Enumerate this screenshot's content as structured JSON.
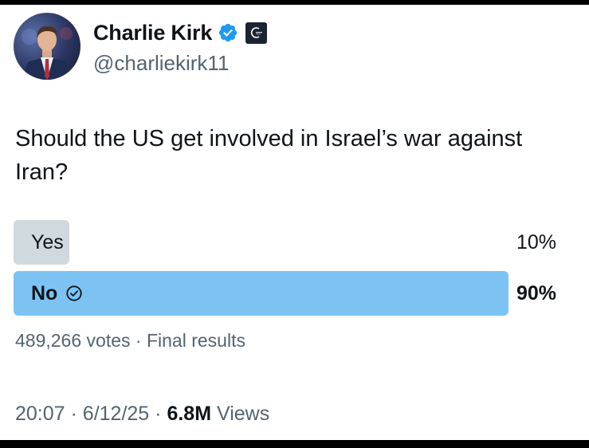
{
  "author": {
    "name": "Charlie Kirk",
    "handle": "@charliekirk11",
    "verified_icon": "verified-badge-icon",
    "affiliation_icon": "organization-badge-icon"
  },
  "post": {
    "text": "Should the US get involved in Israel’s war against Iran?"
  },
  "poll": {
    "options": [
      {
        "label": "Yes",
        "percent_text": "10%",
        "percent": 10,
        "winner": false
      },
      {
        "label": "No",
        "percent_text": "90%",
        "percent": 90,
        "winner": true
      }
    ],
    "votes_text": "489,266 votes",
    "separator": "·",
    "status": "Final results"
  },
  "meta": {
    "time": "20:07",
    "date": "6/12/25",
    "views_count": "6.8M",
    "views_label": "Views",
    "separator": "·"
  },
  "colors": {
    "accent": "#1d9bf0",
    "winner_bar": "#7cc3f3",
    "loser_bar": "#cfd9de",
    "secondary_text": "#536471",
    "primary_text": "#0f1419"
  }
}
